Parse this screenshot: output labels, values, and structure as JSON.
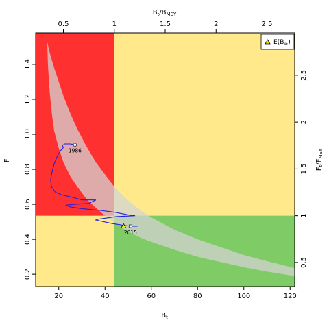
{
  "chart_data": {
    "type": "scatter",
    "title": "",
    "axes": {
      "bottom": {
        "label_main": "B",
        "label_sub": "t",
        "range": [
          10,
          122
        ],
        "ticks": [
          "20",
          "40",
          "60",
          "80",
          "100",
          "120"
        ]
      },
      "left": {
        "label_main": "F",
        "label_sub": "t",
        "range": [
          0.13,
          1.58
        ],
        "ticks": [
          "0.2",
          "0.4",
          "0.6",
          "0.8",
          "1.0",
          "1.2",
          "1.4"
        ]
      },
      "top": {
        "label_main": "B",
        "label_sub": "t",
        "label_main2": "/B",
        "label_sub2": "MSY",
        "ticks": [
          "0.5",
          "1",
          "1.5",
          "2",
          "2.5"
        ],
        "tick_values": [
          0.5,
          1,
          1.5,
          2,
          2.5
        ]
      },
      "right": {
        "label_main": "F",
        "label_sub": "t",
        "label_main2": "/F",
        "label_sub2": "MSY",
        "ticks": [
          "0.5",
          "1",
          "1.5",
          "2",
          "2.5"
        ],
        "tick_values": [
          0.5,
          1,
          1.5,
          2,
          2.5
        ]
      }
    },
    "reference_points": {
      "B_MSY": 44,
      "F_MSY": 0.535
    },
    "zones": {
      "overfished_overfishing_color": "#ff3030",
      "caution_color": "#ffe98a",
      "healthy_color": "#7fcc66"
    },
    "band": {
      "color": "#d3d3d3",
      "upper": [
        [
          15,
          1.53
        ],
        [
          16,
          1.47
        ],
        [
          18,
          1.38
        ],
        [
          20,
          1.3
        ],
        [
          22,
          1.22
        ],
        [
          25,
          1.12
        ],
        [
          28,
          1.03
        ],
        [
          32,
          0.93
        ],
        [
          36,
          0.84
        ],
        [
          40,
          0.77
        ],
        [
          44,
          0.7
        ],
        [
          48,
          0.645
        ],
        [
          52,
          0.6
        ],
        [
          56,
          0.56
        ],
        [
          60,
          0.525
        ],
        [
          70,
          0.455
        ],
        [
          80,
          0.4
        ],
        [
          90,
          0.355
        ],
        [
          100,
          0.31
        ],
        [
          110,
          0.275
        ],
        [
          122,
          0.235
        ]
      ],
      "lower": [
        [
          15,
          1.53
        ],
        [
          15.3,
          1.4
        ],
        [
          16,
          1.25
        ],
        [
          17,
          1.12
        ],
        [
          18,
          1.02
        ],
        [
          20,
          0.92
        ],
        [
          22,
          0.84
        ],
        [
          25,
          0.76
        ],
        [
          28,
          0.7
        ],
        [
          32,
          0.63
        ],
        [
          36,
          0.58
        ],
        [
          40,
          0.535
        ],
        [
          44,
          0.495
        ],
        [
          48,
          0.46
        ],
        [
          52,
          0.43
        ],
        [
          56,
          0.405
        ],
        [
          60,
          0.385
        ],
        [
          70,
          0.34
        ],
        [
          80,
          0.3
        ],
        [
          90,
          0.27
        ],
        [
          100,
          0.24
        ],
        [
          110,
          0.215
        ],
        [
          122,
          0.19
        ]
      ]
    },
    "trajectory": {
      "color": "#2020e0",
      "points": [
        [
          27,
          0.94
        ],
        [
          25,
          0.945
        ],
        [
          22.5,
          0.945
        ],
        [
          21.5,
          0.935
        ],
        [
          22,
          0.925
        ],
        [
          21,
          0.91
        ],
        [
          19.5,
          0.88
        ],
        [
          18,
          0.83
        ],
        [
          17,
          0.78
        ],
        [
          16.5,
          0.74
        ],
        [
          16.8,
          0.7
        ],
        [
          18.5,
          0.67
        ],
        [
          21,
          0.655
        ],
        [
          26,
          0.64
        ],
        [
          30,
          0.625
        ],
        [
          33,
          0.625
        ],
        [
          36,
          0.625
        ],
        [
          33,
          0.605
        ],
        [
          27,
          0.6
        ],
        [
          23,
          0.595
        ],
        [
          25,
          0.585
        ],
        [
          30,
          0.575
        ],
        [
          38,
          0.565
        ],
        [
          44,
          0.555
        ],
        [
          50,
          0.54
        ],
        [
          53,
          0.535
        ],
        [
          45,
          0.53
        ],
        [
          37,
          0.515
        ],
        [
          36,
          0.51
        ],
        [
          43,
          0.49
        ],
        [
          48,
          0.48
        ],
        [
          51,
          0.475
        ],
        [
          54,
          0.475
        ],
        [
          51,
          0.475
        ]
      ]
    },
    "start_point": {
      "x": 27,
      "y": 0.94,
      "label": "1986"
    },
    "end_point": {
      "x": 51,
      "y": 0.475,
      "label": "2015"
    },
    "expected_point": {
      "x": 48,
      "y": 0.475
    },
    "legend": {
      "position": "top-right",
      "entry_main": "E(B",
      "entry_sub": "∞",
      "entry_close": ")"
    }
  }
}
